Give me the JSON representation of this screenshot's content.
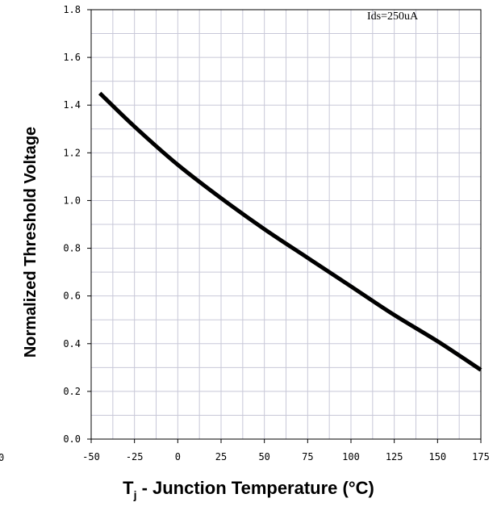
{
  "chart_data": {
    "type": "line",
    "title": "",
    "xlabel": {
      "main": "T",
      "subscript": "j",
      "rest": " - Junction Temperature (°C)"
    },
    "ylabel": "Normalized Threshold Voltage",
    "annotation": "Ids=250uA",
    "stray_label": "0",
    "xlim": [
      -50,
      175
    ],
    "ylim": [
      0.0,
      1.8
    ],
    "x_ticks": [
      -50,
      -25,
      0,
      25,
      50,
      75,
      100,
      125,
      150,
      175
    ],
    "x_tick_labels": [
      "-50",
      "-25",
      "0",
      "25",
      "50",
      "75",
      "100",
      "125",
      "150",
      "175"
    ],
    "y_ticks": [
      0.0,
      0.2,
      0.4,
      0.6,
      0.8,
      1.0,
      1.2,
      1.4,
      1.6,
      1.8
    ],
    "y_tick_labels": [
      "0.0",
      "0.2",
      "0.4",
      "0.6",
      "0.8",
      "1.0",
      "1.2",
      "1.4",
      "1.6",
      "1.8"
    ],
    "grid": true,
    "minor_grid": true,
    "series": [
      {
        "color": "#000000",
        "x": [
          -45,
          -25,
          0,
          25,
          50,
          75,
          100,
          125,
          150,
          175
        ],
        "y": [
          1.45,
          1.31,
          1.15,
          1.01,
          0.88,
          0.76,
          0.64,
          0.52,
          0.41,
          0.29
        ]
      }
    ]
  }
}
